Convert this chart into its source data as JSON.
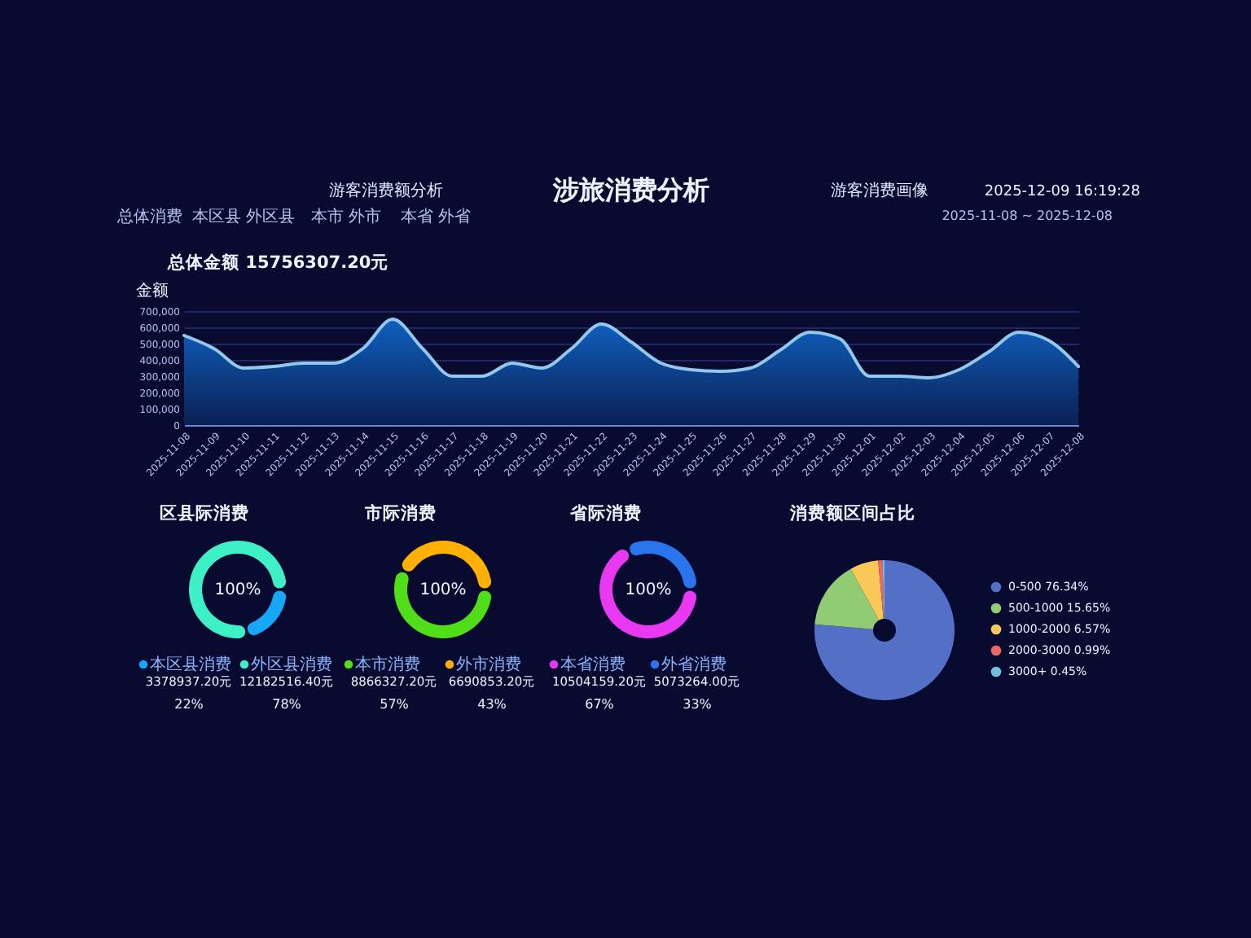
{
  "chart_data": [
    {
      "type": "other",
      "title": "涉旅消费分析",
      "annotations": [
        "游客消费额分析",
        "游客消费画像",
        "2025-12-09 16:19:28",
        "总体消费",
        "本区县 外区县",
        "本市 外市",
        "本省 外省",
        "2025-11-08 ~ 2025-12-08"
      ]
    },
    {
      "type": "area",
      "title": "总体金额 15756307.20元",
      "ylabel": "金额",
      "categories": [
        "2025-11-08",
        "2025-11-09",
        "2025-11-10",
        "2025-11-11",
        "2025-11-12",
        "2025-11-13",
        "2025-11-14",
        "2025-11-15",
        "2025-11-16",
        "2025-11-17",
        "2025-11-18",
        "2025-11-19",
        "2025-11-20",
        "2025-11-21",
        "2025-11-22",
        "2025-11-23",
        "2025-11-24",
        "2025-11-25",
        "2025-11-26",
        "2025-11-27",
        "2025-11-28",
        "2025-11-29",
        "2025-11-30",
        "2025-12-01",
        "2025-12-02",
        "2025-12-03",
        "2025-12-04",
        "2025-12-05",
        "2025-12-06",
        "2025-12-07",
        "2025-12-08"
      ],
      "series": [
        {
          "color": "#1060c0",
          "values": [
            550000,
            470000,
            350000,
            360000,
            380000,
            380000,
            470000,
            650000,
            470000,
            300000,
            300000,
            380000,
            350000,
            470000,
            620000,
            510000,
            380000,
            340000,
            330000,
            350000,
            460000,
            570000,
            530000,
            300000,
            300000,
            290000,
            340000,
            450000,
            570000,
            520000,
            360000
          ]
        }
      ],
      "ylim": [
        0,
        700000
      ],
      "yticks": [
        0,
        {
          "value": 100000,
          "label": "100,000"
        },
        {
          "value": 200000,
          "label": "200,000"
        },
        {
          "value": 300000,
          "label": "300,000"
        },
        {
          "value": 400000,
          "label": "400,000"
        },
        {
          "value": 500000,
          "label": "500,000"
        },
        {
          "value": 600000,
          "label": "600,000"
        },
        {
          "value": 700000,
          "label": "700,000"
        }
      ],
      "grid": "y"
    },
    {
      "type": "donut",
      "title": "区县际消费",
      "categories": [
        "本区县消费",
        "外区县消费"
      ],
      "values": [
        3378937.2,
        12182516.4
      ],
      "colors": [
        "#14a8f7",
        "#3ef0c6"
      ],
      "value_labels": [
        "3378937.20元",
        "12182516.40元"
      ],
      "annotations": [
        "100%",
        "22%",
        "78%"
      ],
      "legend": "bottom"
    },
    {
      "type": "donut",
      "title": "市际消费",
      "categories": [
        "本市消费",
        "外市消费"
      ],
      "values": [
        8866327.2,
        6690853.2
      ],
      "colors": [
        "#4fde17",
        "#ffb000"
      ],
      "value_labels": [
        "8866327.20元",
        "6690853.20元"
      ],
      "annotations": [
        "100%",
        "57%",
        "43%"
      ],
      "legend": "bottom"
    },
    {
      "type": "donut",
      "title": "省际消费",
      "categories": [
        "本省消费",
        "外省消费"
      ],
      "values": [
        10504159.2,
        5073264.0
      ],
      "colors": [
        "#e838f2",
        "#2a74ee"
      ],
      "value_labels": [
        "10504159.20元",
        "5073264.00元"
      ],
      "annotations": [
        "100%",
        "67%",
        "33%"
      ],
      "legend": "bottom"
    },
    {
      "type": "donut",
      "title": "消费额区间占比",
      "categories": [
        "0-500",
        "500-1000",
        "1000-2000",
        "2000-3000",
        "3000+"
      ],
      "values": [
        76.34,
        15.65,
        6.57,
        0.99,
        0.45
      ],
      "colors": [
        "#5470c6",
        "#91cc75",
        "#fac858",
        "#ee6666",
        "#73c0de"
      ],
      "value_labels": [
        "76.34%",
        "15.65%",
        "6.57%",
        "0.99%",
        "0.45%"
      ],
      "legend": "right"
    }
  ]
}
